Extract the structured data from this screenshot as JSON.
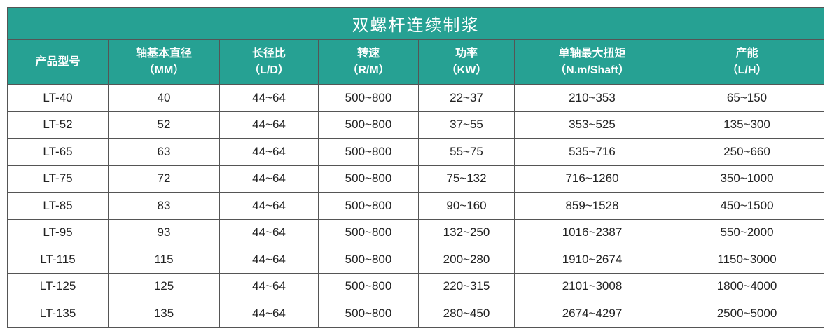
{
  "title": "双螺杆连续制浆",
  "headers": [
    [
      "产品型号"
    ],
    [
      "轴基本直径",
      "（MM）"
    ],
    [
      "长径比",
      "（L/D）"
    ],
    [
      "转速",
      "（R/M）"
    ],
    [
      "功率",
      "（KW）"
    ],
    [
      "单轴最大扭矩",
      "（N.m/Shaft）"
    ],
    [
      "产能",
      "（L/H）"
    ]
  ],
  "rows": [
    [
      "LT-40",
      "40",
      "44~64",
      "500~800",
      "22~37",
      "210~353",
      "65~150"
    ],
    [
      "LT-52",
      "52",
      "44~64",
      "500~800",
      "37~55",
      "353~525",
      "135~300"
    ],
    [
      "LT-65",
      "63",
      "44~64",
      "500~800",
      "55~75",
      "535~716",
      "250~660"
    ],
    [
      "LT-75",
      "72",
      "44~64",
      "500~800",
      "75~132",
      "716~1260",
      "350~1000"
    ],
    [
      "LT-85",
      "83",
      "44~64",
      "500~800",
      "90~160",
      "859~1528",
      "450~1500"
    ],
    [
      "LT-95",
      "93",
      "44~64",
      "500~800",
      "132~250",
      "1016~2387",
      "550~2000"
    ],
    [
      "LT-115",
      "115",
      "44~64",
      "500~800",
      "200~280",
      "1910~2674",
      "1150~3000"
    ],
    [
      "LT-125",
      "125",
      "44~64",
      "500~800",
      "220~315",
      "2101~3008",
      "1800~4000"
    ],
    [
      "LT-135",
      "135",
      "44~64",
      "500~800",
      "280~450",
      "2674~4297",
      "2500~5000"
    ]
  ]
}
